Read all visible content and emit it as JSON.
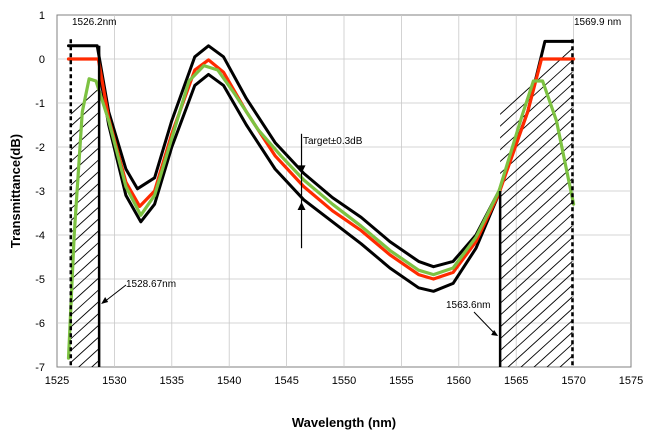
{
  "chart_data": {
    "type": "line",
    "title": "",
    "xlabel": "Wavelength (nm)",
    "ylabel": "Transmittance(dB)",
    "xlim": [
      1525,
      1575
    ],
    "ylim": [
      -7,
      1
    ],
    "xticks": [
      1525,
      1530,
      1535,
      1540,
      1545,
      1550,
      1555,
      1560,
      1565,
      1570,
      1575
    ],
    "yticks": [
      1,
      0,
      -1,
      -2,
      -3,
      -4,
      -5,
      -6,
      -7
    ],
    "grid": true,
    "legend": "none",
    "series": [
      {
        "color": "#000000",
        "style": "upper-bound",
        "points": [
          [
            1526.0,
            0.3
          ],
          [
            1528.5,
            0.3
          ],
          [
            1529.5,
            -1.2
          ],
          [
            1531.0,
            -2.5
          ],
          [
            1532.0,
            -2.95
          ],
          [
            1533.5,
            -2.7
          ],
          [
            1535.0,
            -1.4
          ],
          [
            1537.0,
            0.05
          ],
          [
            1538.2,
            0.3
          ],
          [
            1539.5,
            0.05
          ],
          [
            1541.5,
            -0.9
          ],
          [
            1544.0,
            -1.9
          ],
          [
            1546.5,
            -2.6
          ],
          [
            1549.0,
            -3.15
          ],
          [
            1551.5,
            -3.6
          ],
          [
            1554.0,
            -4.15
          ],
          [
            1556.5,
            -4.6
          ],
          [
            1557.8,
            -4.72
          ],
          [
            1559.5,
            -4.6
          ],
          [
            1561.5,
            -4.0
          ],
          [
            1563.5,
            -3.0
          ],
          [
            1566.0,
            -1.2
          ],
          [
            1567.5,
            0.4
          ],
          [
            1569.9,
            0.4
          ]
        ]
      },
      {
        "color": "#000000",
        "style": "lower-bound",
        "points": [
          [
            1528.7,
            -0.3
          ],
          [
            1529.5,
            -1.5
          ],
          [
            1531.0,
            -3.1
          ],
          [
            1532.3,
            -3.7
          ],
          [
            1533.5,
            -3.3
          ],
          [
            1535.0,
            -2.0
          ],
          [
            1537.0,
            -0.6
          ],
          [
            1538.2,
            -0.35
          ],
          [
            1539.5,
            -0.6
          ],
          [
            1541.5,
            -1.5
          ],
          [
            1544.0,
            -2.5
          ],
          [
            1546.5,
            -3.2
          ],
          [
            1549.0,
            -3.7
          ],
          [
            1551.5,
            -4.2
          ],
          [
            1554.0,
            -4.75
          ],
          [
            1556.5,
            -5.2
          ],
          [
            1557.8,
            -5.28
          ],
          [
            1559.5,
            -5.1
          ],
          [
            1561.5,
            -4.3
          ],
          [
            1563.6,
            -3.0
          ]
        ]
      },
      {
        "color": "#ff2a00",
        "style": "target",
        "points": [
          [
            1526.0,
            0.0
          ],
          [
            1528.6,
            0.0
          ],
          [
            1529.5,
            -1.35
          ],
          [
            1531.0,
            -2.8
          ],
          [
            1532.2,
            -3.35
          ],
          [
            1533.5,
            -3.0
          ],
          [
            1535.0,
            -1.7
          ],
          [
            1537.0,
            -0.25
          ],
          [
            1538.2,
            -0.02
          ],
          [
            1539.5,
            -0.3
          ],
          [
            1541.5,
            -1.2
          ],
          [
            1544.0,
            -2.2
          ],
          [
            1546.5,
            -2.9
          ],
          [
            1549.0,
            -3.45
          ],
          [
            1551.5,
            -3.9
          ],
          [
            1554.0,
            -4.45
          ],
          [
            1556.5,
            -4.9
          ],
          [
            1557.8,
            -5.0
          ],
          [
            1559.5,
            -4.85
          ],
          [
            1561.5,
            -4.15
          ],
          [
            1563.5,
            -3.05
          ],
          [
            1566.0,
            -1.2
          ],
          [
            1567.2,
            0.0
          ],
          [
            1570.0,
            0.0
          ]
        ]
      },
      {
        "color": "#7dc242",
        "style": "measured",
        "points": [
          [
            1526.0,
            -6.8
          ],
          [
            1526.5,
            -4.0
          ],
          [
            1527.2,
            -1.2
          ],
          [
            1527.8,
            -0.45
          ],
          [
            1528.4,
            -0.5
          ],
          [
            1529.5,
            -1.4
          ],
          [
            1531.0,
            -2.9
          ],
          [
            1532.3,
            -3.55
          ],
          [
            1533.5,
            -3.1
          ],
          [
            1535.0,
            -1.8
          ],
          [
            1536.5,
            -0.5
          ],
          [
            1537.8,
            -0.15
          ],
          [
            1539.0,
            -0.25
          ],
          [
            1540.5,
            -0.8
          ],
          [
            1542.5,
            -1.6
          ],
          [
            1544.5,
            -2.2
          ],
          [
            1546.5,
            -2.75
          ],
          [
            1549.0,
            -3.3
          ],
          [
            1551.5,
            -3.8
          ],
          [
            1554.0,
            -4.35
          ],
          [
            1556.5,
            -4.8
          ],
          [
            1557.8,
            -4.9
          ],
          [
            1559.5,
            -4.75
          ],
          [
            1561.5,
            -4.05
          ],
          [
            1563.5,
            -3.0
          ],
          [
            1565.5,
            -1.3
          ],
          [
            1566.5,
            -0.5
          ],
          [
            1567.3,
            -0.5
          ],
          [
            1568.5,
            -1.4
          ],
          [
            1570.0,
            -3.3
          ]
        ]
      }
    ],
    "annotations": [
      {
        "text": "1526.2nm"
      },
      {
        "text": "1569.9 nm"
      },
      {
        "text": "1528.67nm"
      },
      {
        "text": "1563.6nm"
      },
      {
        "text": "Target±0.3dB"
      }
    ]
  }
}
